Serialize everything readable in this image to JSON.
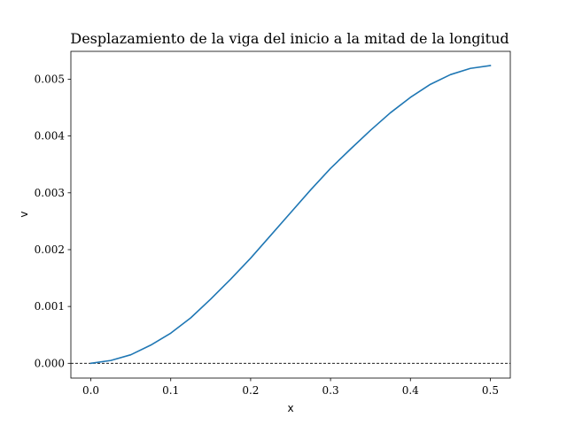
{
  "chart_data": {
    "type": "line",
    "title": "Desplazamiento de la viga del inicio a la mitad de la longitud",
    "xlabel": "x",
    "ylabel": "v",
    "xlim": [
      -0.025,
      0.525
    ],
    "ylim": [
      -0.00026,
      0.00549
    ],
    "xticks": [
      0.0,
      0.1,
      0.2,
      0.3,
      0.4,
      0.5
    ],
    "xtick_labels": [
      "0.0",
      "0.1",
      "0.2",
      "0.3",
      "0.4",
      "0.5"
    ],
    "yticks": [
      0.0,
      0.001,
      0.002,
      0.003,
      0.004,
      0.005
    ],
    "ytick_labels": [
      "0.000",
      "0.001",
      "0.002",
      "0.003",
      "0.004",
      "0.005"
    ],
    "grid": false,
    "reference_line": {
      "y": 0.0,
      "style": "dashed",
      "color": "#000000"
    },
    "series": [
      {
        "color": "#1f77b4",
        "x": [
          0.0,
          0.025,
          0.05,
          0.075,
          0.1,
          0.125,
          0.15,
          0.175,
          0.2,
          0.225,
          0.25,
          0.275,
          0.3,
          0.325,
          0.35,
          0.375,
          0.4,
          0.425,
          0.45,
          0.475,
          0.5
        ],
        "y": [
          0.0,
          5e-05,
          0.00015,
          0.00032,
          0.00053,
          0.0008,
          0.00113,
          0.00148,
          0.00185,
          0.00225,
          0.00265,
          0.00305,
          0.00343,
          0.00377,
          0.0041,
          0.00441,
          0.00468,
          0.00491,
          0.00508,
          0.00519,
          0.00524
        ]
      }
    ]
  }
}
